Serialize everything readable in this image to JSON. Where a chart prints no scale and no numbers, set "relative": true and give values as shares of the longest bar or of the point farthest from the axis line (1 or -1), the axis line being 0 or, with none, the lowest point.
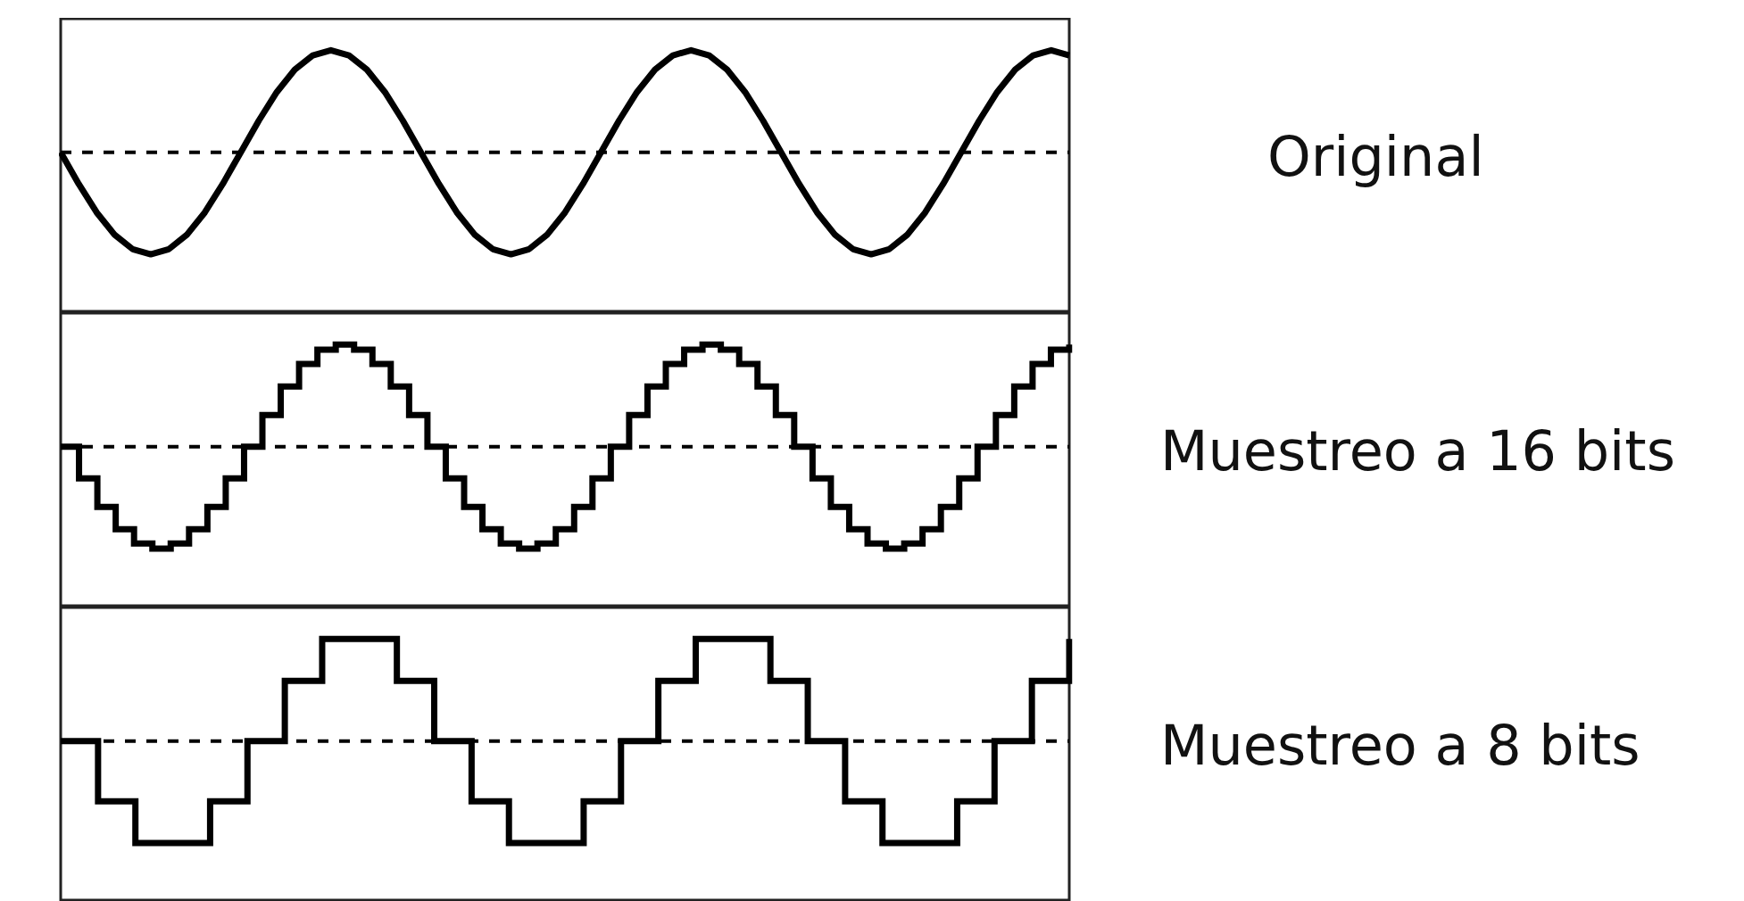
{
  "chart_data": [
    {
      "type": "line",
      "annotations": [
        "Original"
      ],
      "relative": true,
      "color": "#000000",
      "categories": [
        null,
        null,
        null,
        null,
        null,
        null,
        null,
        null,
        null,
        null,
        null,
        null,
        null,
        null,
        null,
        null,
        null,
        null,
        null,
        null,
        null,
        null,
        null,
        null,
        null,
        null,
        null,
        null,
        null,
        null,
        null,
        null,
        null,
        null,
        null,
        null,
        null,
        null,
        null,
        null,
        null,
        null,
        null,
        null,
        null,
        null,
        null,
        null,
        null,
        null,
        null,
        null,
        null,
        null,
        null,
        null,
        null
      ],
      "values": [
        0,
        -0.31,
        -0.59,
        -0.81,
        -0.95,
        -1,
        -0.95,
        -0.81,
        -0.59,
        -0.31,
        0,
        0.31,
        0.59,
        0.81,
        0.95,
        1,
        0.95,
        0.81,
        0.59,
        0.31,
        0,
        -0.31,
        -0.59,
        -0.81,
        -0.95,
        -1,
        -0.95,
        -0.81,
        -0.59,
        -0.31,
        0,
        0.31,
        0.59,
        0.81,
        0.95,
        1,
        0.95,
        0.81,
        0.59,
        0.31,
        0,
        -0.31,
        -0.59,
        -0.81,
        -0.95,
        -1,
        -0.95,
        -0.81,
        -0.59,
        -0.31,
        0,
        0.31,
        0.59,
        0.81,
        0.95,
        1,
        0.95
      ],
      "ref_lines": [
        {
          "axis": "y",
          "value": 0,
          "line_style": "dashed",
          "color": "#000000"
        }
      ]
    },
    {
      "type": "step",
      "annotations": [
        "Muestreo a 16 bits"
      ],
      "relative": true,
      "color": "#000000",
      "categories": [
        null,
        null,
        null,
        null,
        null,
        null,
        null,
        null,
        null,
        null,
        null,
        null,
        null,
        null,
        null,
        null,
        null,
        null,
        null,
        null,
        null,
        null,
        null,
        null,
        null,
        null,
        null,
        null,
        null,
        null,
        null,
        null,
        null,
        null,
        null,
        null,
        null,
        null,
        null,
        null,
        null,
        null,
        null,
        null,
        null,
        null,
        null,
        null,
        null,
        null,
        null,
        null,
        null,
        null,
        null,
        null
      ],
      "values": [
        0,
        -0.31,
        -0.59,
        -0.81,
        -0.95,
        -1,
        -0.95,
        -0.81,
        -0.59,
        -0.31,
        0,
        0.31,
        0.59,
        0.81,
        0.95,
        1,
        0.95,
        0.81,
        0.59,
        0.31,
        0,
        -0.31,
        -0.59,
        -0.81,
        -0.95,
        -1,
        -0.95,
        -0.81,
        -0.59,
        -0.31,
        0,
        0.31,
        0.59,
        0.81,
        0.95,
        1,
        0.95,
        0.81,
        0.59,
        0.31,
        0,
        -0.31,
        -0.59,
        -0.81,
        -0.95,
        -1,
        -0.95,
        -0.81,
        -0.59,
        -0.31,
        0,
        0.31,
        0.59,
        0.81,
        0.95,
        1
      ],
      "ref_lines": [
        {
          "axis": "y",
          "value": 0,
          "line_style": "dashed",
          "color": "#000000"
        }
      ]
    },
    {
      "type": "step",
      "annotations": [
        "Muestreo a 8 bits"
      ],
      "relative": true,
      "color": "#000000",
      "categories": [
        null,
        null,
        null,
        null,
        null,
        null,
        null,
        null,
        null,
        null,
        null,
        null,
        null,
        null,
        null,
        null,
        null,
        null,
        null,
        null,
        null,
        null,
        null,
        null,
        null,
        null,
        null,
        null
      ],
      "values": [
        0,
        -0.59,
        -1,
        -1,
        -0.59,
        0,
        0.59,
        1,
        1,
        0.59,
        0,
        -0.59,
        -1,
        -1,
        -0.59,
        0,
        0.59,
        1,
        1,
        0.59,
        0,
        -0.59,
        -1,
        -1,
        -0.59,
        0,
        0.59,
        1
      ],
      "ref_lines": [
        {
          "axis": "y",
          "value": 0,
          "line_style": "dashed",
          "color": "#000000"
        }
      ]
    }
  ]
}
